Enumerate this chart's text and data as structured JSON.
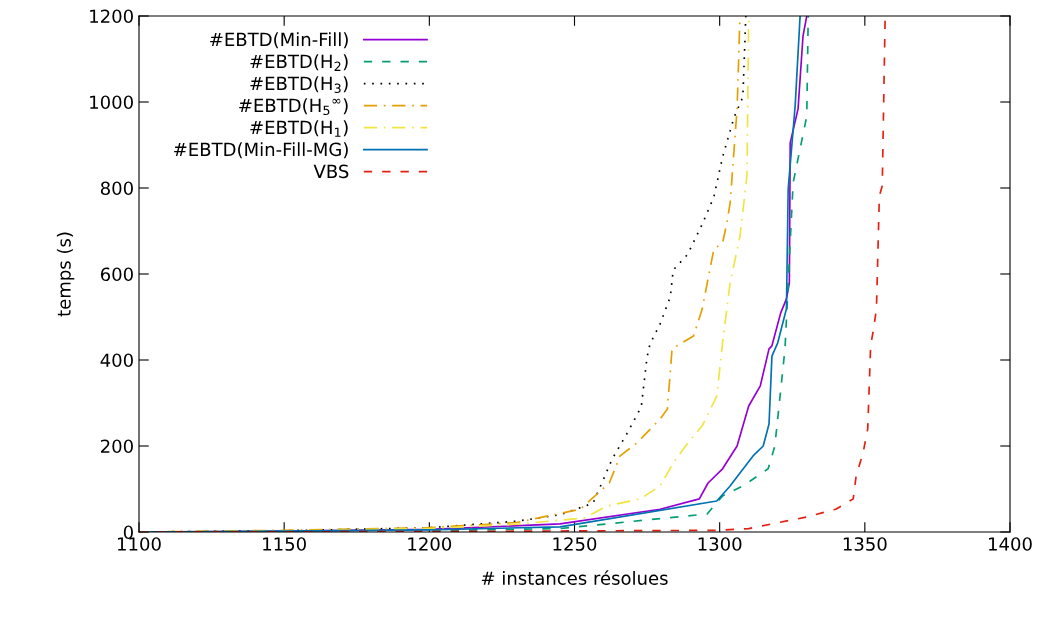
{
  "chart_data": {
    "type": "line",
    "xlabel": "# instances résolues",
    "ylabel": "temps (s)",
    "xlim": [
      1100,
      1400
    ],
    "ylim": [
      0,
      1200
    ],
    "xticks": [
      1100,
      1150,
      1200,
      1250,
      1300,
      1350,
      1400
    ],
    "yticks": [
      0,
      200,
      400,
      600,
      800,
      1000,
      1200
    ],
    "grid": false,
    "legend": "top left",
    "marker": "none",
    "series": [
      {
        "name": "#EBTD(Min-Fill)",
        "color": "#9400d3",
        "line_style": "solid",
        "x": [
          1100,
          1150,
          1200,
          1245,
          1279.5,
          1293,
          1296,
          1301,
          1306,
          1310,
          1314,
          1317,
          1318,
          1321,
          1323,
          1324,
          1324.3,
          1327,
          1328.7,
          1330
        ],
        "values": [
          0,
          2,
          6,
          19,
          53,
          77,
          114,
          147,
          200,
          293,
          340,
          426,
          433,
          509,
          542,
          579,
          905,
          984,
          1153,
          1200
        ]
      },
      {
        "name": "#EBTD(H$_{2}$)",
        "color": "#009e73",
        "line_style": "dashed",
        "x": [
          1100,
          1150,
          1200,
          1245,
          1295.7,
          1301,
          1308,
          1313,
          1316.7,
          1319,
          1322.5,
          1325.3,
          1330,
          1330.5
        ],
        "values": [
          0,
          1,
          3,
          8,
          42,
          84,
          107,
          130,
          147,
          200,
          426,
          812,
          967,
          1200
        ]
      },
      {
        "name": "#EBTD(H$_{3}$)",
        "color": "#000000",
        "line_style": "dotted",
        "x": [
          1100,
          1150,
          1200,
          1230,
          1245,
          1256.4,
          1263,
          1268,
          1273,
          1275,
          1276,
          1279.5,
          1283,
          1284,
          1289,
          1294,
          1298,
          1301,
          1305,
          1308,
          1309
        ],
        "values": [
          0,
          3,
          10,
          25,
          40,
          67,
          170,
          228,
          291,
          407,
          437,
          484,
          547,
          609,
          646,
          716,
          779,
          872,
          965,
          1012,
          1200
        ]
      },
      {
        "name": "#EBTD(H$_{5}$$^{∞}$)",
        "color": "#e69f00",
        "line_style": "dashdot",
        "x": [
          1100,
          1150,
          1200,
          1230,
          1252,
          1262,
          1265.7,
          1271.5,
          1279.5,
          1282,
          1283.6,
          1291,
          1294,
          1298,
          1301,
          1302.5,
          1303.6,
          1306,
          1307
        ],
        "values": [
          0,
          4,
          10,
          22,
          53,
          114,
          177,
          207,
          263,
          286,
          426,
          456,
          519,
          658,
          672,
          719,
          765,
          984,
          1200
        ]
      },
      {
        "name": "#EBTD(H$_{1}$)",
        "color": "#f0e442",
        "line_style": "dashdot",
        "x": [
          1100,
          1150,
          1200,
          1230,
          1253.6,
          1261,
          1272.6,
          1279.5,
          1284,
          1289,
          1294,
          1299,
          1301,
          1303.6,
          1307,
          1309.4,
          1310
        ],
        "values": [
          0,
          2,
          8,
          18,
          33,
          60,
          77,
          107,
          160,
          207,
          247,
          316,
          440,
          579,
          688,
          828,
          1200
        ]
      },
      {
        "name": "#EBTD(Min-Fill-MG)",
        "color": "#0072b2",
        "line_style": "solid",
        "x": [
          1100,
          1150,
          1200,
          1245,
          1299,
          1303.6,
          1307,
          1311.5,
          1315,
          1317,
          1318,
          1320,
          1323,
          1323.6,
          1326,
          1327.7
        ],
        "values": [
          0,
          2,
          5,
          12,
          72,
          107,
          137,
          177,
          200,
          251,
          409,
          440,
          519,
          798,
          991,
          1200
        ]
      },
      {
        "name": "VBS",
        "color": "#e51e10",
        "line_style": "dashed",
        "x": [
          1100,
          1200,
          1300,
          1310,
          1330,
          1340,
          1346,
          1347,
          1349.4,
          1351,
          1352,
          1353,
          1354,
          1355,
          1356,
          1357
        ],
        "values": [
          0,
          1,
          4,
          8,
          35,
          53,
          77,
          130,
          184,
          240,
          433,
          472,
          519,
          781,
          805,
          1200
        ]
      }
    ]
  }
}
